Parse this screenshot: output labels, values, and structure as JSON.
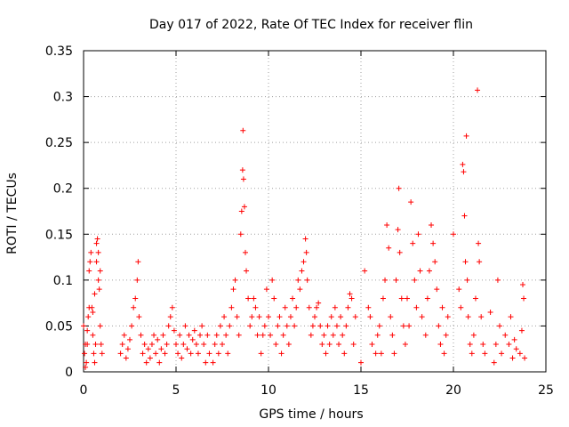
{
  "chart_data": {
    "type": "scatter",
    "title": "Day 017 of 2022, Rate Of TEC Index for receiver flin",
    "xlabel": "GPS time / hours",
    "ylabel": "ROTI / TECUs",
    "xlim": [
      0,
      25
    ],
    "ylim": [
      0,
      0.35
    ],
    "xticks": [
      0,
      5,
      10,
      15,
      20,
      25
    ],
    "xtick_labels": [
      "0",
      "5",
      "10",
      "15",
      "20",
      "25"
    ],
    "yticks": [
      0,
      0.05,
      0.1,
      0.15,
      0.2,
      0.25,
      0.3,
      0.35
    ],
    "ytick_labels": [
      "0",
      "0.05",
      "0.1",
      "0.15",
      "0.2",
      "0.25",
      "0.3",
      "0.35"
    ],
    "grid": true,
    "marker": "plus",
    "color": "#ff0000",
    "points": [
      [
        0.0,
        0.05
      ],
      [
        0.05,
        0.02
      ],
      [
        0.1,
        0.005
      ],
      [
        0.15,
        0.01
      ],
      [
        0.2,
        0.03
      ],
      [
        0.25,
        0.06
      ],
      [
        0.3,
        0.11
      ],
      [
        0.35,
        0.12
      ],
      [
        0.4,
        0.13
      ],
      [
        0.45,
        0.07
      ],
      [
        0.5,
        0.04
      ],
      [
        0.55,
        0.02
      ],
      [
        0.6,
        0.01
      ],
      [
        0.65,
        0.03
      ],
      [
        0.7,
        0.14
      ],
      [
        0.75,
        0.145
      ],
      [
        0.8,
        0.1
      ],
      [
        0.85,
        0.09
      ],
      [
        0.9,
        0.05
      ],
      [
        0.95,
        0.03
      ],
      [
        1.0,
        0.02
      ],
      [
        0.1,
        0.03
      ],
      [
        0.2,
        0.045
      ],
      [
        0.3,
        0.07
      ],
      [
        0.5,
        0.065
      ],
      [
        0.6,
        0.085
      ],
      [
        0.7,
        0.12
      ],
      [
        0.8,
        0.13
      ],
      [
        0.9,
        0.11
      ],
      [
        2.0,
        0.02
      ],
      [
        2.1,
        0.03
      ],
      [
        2.2,
        0.04
      ],
      [
        2.3,
        0.015
      ],
      [
        2.4,
        0.025
      ],
      [
        2.5,
        0.035
      ],
      [
        2.6,
        0.05
      ],
      [
        2.7,
        0.07
      ],
      [
        2.8,
        0.08
      ],
      [
        2.9,
        0.1
      ],
      [
        2.95,
        0.12
      ],
      [
        3.0,
        0.06
      ],
      [
        3.1,
        0.04
      ],
      [
        3.2,
        0.02
      ],
      [
        3.3,
        0.03
      ],
      [
        3.4,
        0.01
      ],
      [
        3.5,
        0.025
      ],
      [
        3.6,
        0.015
      ],
      [
        3.7,
        0.03
      ],
      [
        3.8,
        0.04
      ],
      [
        3.9,
        0.02
      ],
      [
        4.0,
        0.035
      ],
      [
        4.1,
        0.01
      ],
      [
        4.2,
        0.025
      ],
      [
        4.3,
        0.04
      ],
      [
        4.4,
        0.02
      ],
      [
        4.5,
        0.03
      ],
      [
        4.6,
        0.05
      ],
      [
        4.7,
        0.06
      ],
      [
        4.8,
        0.07
      ],
      [
        4.9,
        0.045
      ],
      [
        5.0,
        0.03
      ],
      [
        5.1,
        0.02
      ],
      [
        5.2,
        0.04
      ],
      [
        5.3,
        0.015
      ],
      [
        5.4,
        0.03
      ],
      [
        5.5,
        0.05
      ],
      [
        5.6,
        0.025
      ],
      [
        5.7,
        0.04
      ],
      [
        5.8,
        0.02
      ],
      [
        5.9,
        0.035
      ],
      [
        6.0,
        0.045
      ],
      [
        6.1,
        0.03
      ],
      [
        6.2,
        0.02
      ],
      [
        6.3,
        0.04
      ],
      [
        6.4,
        0.05
      ],
      [
        6.5,
        0.03
      ],
      [
        6.6,
        0.01
      ],
      [
        6.7,
        0.04
      ],
      [
        6.8,
        0.02
      ],
      [
        7.0,
        0.01
      ],
      [
        7.1,
        0.03
      ],
      [
        7.2,
        0.04
      ],
      [
        7.3,
        0.02
      ],
      [
        7.4,
        0.05
      ],
      [
        7.5,
        0.03
      ],
      [
        7.6,
        0.06
      ],
      [
        7.7,
        0.04
      ],
      [
        7.8,
        0.02
      ],
      [
        7.9,
        0.05
      ],
      [
        8.0,
        0.07
      ],
      [
        8.1,
        0.09
      ],
      [
        8.2,
        0.1
      ],
      [
        8.3,
        0.06
      ],
      [
        8.4,
        0.04
      ],
      [
        8.5,
        0.15
      ],
      [
        8.55,
        0.175
      ],
      [
        8.6,
        0.22
      ],
      [
        8.62,
        0.263
      ],
      [
        8.65,
        0.21
      ],
      [
        8.7,
        0.18
      ],
      [
        8.75,
        0.13
      ],
      [
        8.8,
        0.11
      ],
      [
        8.9,
        0.08
      ],
      [
        9.0,
        0.05
      ],
      [
        9.1,
        0.06
      ],
      [
        9.2,
        0.08
      ],
      [
        9.3,
        0.07
      ],
      [
        9.4,
        0.04
      ],
      [
        9.5,
        0.06
      ],
      [
        9.6,
        0.02
      ],
      [
        9.7,
        0.04
      ],
      [
        9.8,
        0.05
      ],
      [
        9.9,
        0.09
      ],
      [
        10.0,
        0.06
      ],
      [
        10.1,
        0.04
      ],
      [
        10.2,
        0.1
      ],
      [
        10.3,
        0.08
      ],
      [
        10.4,
        0.03
      ],
      [
        10.5,
        0.05
      ],
      [
        10.6,
        0.06
      ],
      [
        10.7,
        0.02
      ],
      [
        10.8,
        0.04
      ],
      [
        10.9,
        0.07
      ],
      [
        11.0,
        0.05
      ],
      [
        11.1,
        0.03
      ],
      [
        11.2,
        0.06
      ],
      [
        11.3,
        0.08
      ],
      [
        11.4,
        0.05
      ],
      [
        11.5,
        0.07
      ],
      [
        11.6,
        0.1
      ],
      [
        11.7,
        0.09
      ],
      [
        11.8,
        0.11
      ],
      [
        11.9,
        0.12
      ],
      [
        12.0,
        0.145
      ],
      [
        12.05,
        0.13
      ],
      [
        12.1,
        0.1
      ],
      [
        12.2,
        0.07
      ],
      [
        12.3,
        0.04
      ],
      [
        12.4,
        0.05
      ],
      [
        12.5,
        0.06
      ],
      [
        12.6,
        0.07
      ],
      [
        12.7,
        0.075
      ],
      [
        12.8,
        0.05
      ],
      [
        12.9,
        0.03
      ],
      [
        13.0,
        0.04
      ],
      [
        13.1,
        0.02
      ],
      [
        13.2,
        0.05
      ],
      [
        13.3,
        0.03
      ],
      [
        13.4,
        0.06
      ],
      [
        13.5,
        0.04
      ],
      [
        13.6,
        0.07
      ],
      [
        13.7,
        0.05
      ],
      [
        13.8,
        0.03
      ],
      [
        13.9,
        0.06
      ],
      [
        14.0,
        0.04
      ],
      [
        14.1,
        0.02
      ],
      [
        14.2,
        0.05
      ],
      [
        14.3,
        0.07
      ],
      [
        14.4,
        0.085
      ],
      [
        14.5,
        0.08
      ],
      [
        14.6,
        0.03
      ],
      [
        14.7,
        0.06
      ],
      [
        15.0,
        0.01
      ],
      [
        15.2,
        0.11
      ],
      [
        15.4,
        0.07
      ],
      [
        15.5,
        0.06
      ],
      [
        15.6,
        0.03
      ],
      [
        15.8,
        0.02
      ],
      [
        15.9,
        0.04
      ],
      [
        16.0,
        0.05
      ],
      [
        16.1,
        0.02
      ],
      [
        16.2,
        0.08
      ],
      [
        16.3,
        0.1
      ],
      [
        16.4,
        0.16
      ],
      [
        16.5,
        0.135
      ],
      [
        16.6,
        0.06
      ],
      [
        16.7,
        0.04
      ],
      [
        16.8,
        0.02
      ],
      [
        16.9,
        0.1
      ],
      [
        17.0,
        0.155
      ],
      [
        17.05,
        0.2
      ],
      [
        17.1,
        0.13
      ],
      [
        17.2,
        0.08
      ],
      [
        17.3,
        0.05
      ],
      [
        17.4,
        0.03
      ],
      [
        17.5,
        0.08
      ],
      [
        17.6,
        0.05
      ],
      [
        17.7,
        0.185
      ],
      [
        17.8,
        0.14
      ],
      [
        17.9,
        0.1
      ],
      [
        18.0,
        0.07
      ],
      [
        18.1,
        0.15
      ],
      [
        18.2,
        0.11
      ],
      [
        18.3,
        0.06
      ],
      [
        18.5,
        0.04
      ],
      [
        18.6,
        0.08
      ],
      [
        18.7,
        0.11
      ],
      [
        18.8,
        0.16
      ],
      [
        18.9,
        0.14
      ],
      [
        19.0,
        0.12
      ],
      [
        19.1,
        0.09
      ],
      [
        19.2,
        0.05
      ],
      [
        19.3,
        0.03
      ],
      [
        19.4,
        0.07
      ],
      [
        19.5,
        0.02
      ],
      [
        19.6,
        0.04
      ],
      [
        19.7,
        0.06
      ],
      [
        20.0,
        0.15
      ],
      [
        20.3,
        0.09
      ],
      [
        20.4,
        0.07
      ],
      [
        20.5,
        0.226
      ],
      [
        20.55,
        0.218
      ],
      [
        20.6,
        0.17
      ],
      [
        20.65,
        0.12
      ],
      [
        20.7,
        0.257
      ],
      [
        20.75,
        0.1
      ],
      [
        20.8,
        0.06
      ],
      [
        20.9,
        0.03
      ],
      [
        21.0,
        0.02
      ],
      [
        21.1,
        0.04
      ],
      [
        21.2,
        0.08
      ],
      [
        21.3,
        0.307
      ],
      [
        21.35,
        0.14
      ],
      [
        21.4,
        0.12
      ],
      [
        21.5,
        0.06
      ],
      [
        21.6,
        0.03
      ],
      [
        21.7,
        0.02
      ],
      [
        22.0,
        0.065
      ],
      [
        22.2,
        0.01
      ],
      [
        22.3,
        0.03
      ],
      [
        22.4,
        0.1
      ],
      [
        22.5,
        0.05
      ],
      [
        22.6,
        0.02
      ],
      [
        22.8,
        0.04
      ],
      [
        23.0,
        0.03
      ],
      [
        23.1,
        0.06
      ],
      [
        23.2,
        0.015
      ],
      [
        23.3,
        0.035
      ],
      [
        23.4,
        0.025
      ],
      [
        23.6,
        0.02
      ],
      [
        23.7,
        0.045
      ],
      [
        23.75,
        0.095
      ],
      [
        23.8,
        0.08
      ],
      [
        23.85,
        0.015
      ]
    ]
  }
}
